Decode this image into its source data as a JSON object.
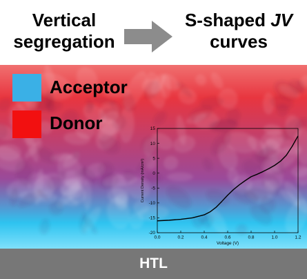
{
  "header": {
    "left": {
      "line1": "Vertical",
      "line2": "segregation"
    },
    "right": {
      "line1_pre": "S-shaped ",
      "line1_em": "JV",
      "line2": "curves"
    }
  },
  "legend": {
    "items": [
      {
        "label": "Acceptor",
        "color": "#3ab0e6"
      },
      {
        "label": "Donor",
        "color": "#f21010"
      }
    ]
  },
  "layer": {
    "label": "HTL",
    "color": "#777777"
  },
  "colors": {
    "donor": "#e8353f",
    "acceptor": "#2ec3f0",
    "blend_mid": "#9a4a9a"
  },
  "chart_data": {
    "type": "line",
    "xlabel": "Voltage (V)",
    "ylabel": "Current Density (mA/cm²)",
    "xlim": [
      0.0,
      1.2
    ],
    "ylim": [
      -20,
      15
    ],
    "xticks": [
      "0.0",
      "0.2",
      "0.4",
      "0.6",
      "0.8",
      "1.0",
      "1.2"
    ],
    "yticks": [
      "-20",
      "-15",
      "-10",
      "-5",
      "0",
      "5",
      "10",
      "15"
    ],
    "series": [
      {
        "color": "#000000",
        "x": [
          0.0,
          0.1,
          0.2,
          0.3,
          0.4,
          0.45,
          0.5,
          0.55,
          0.6,
          0.65,
          0.7,
          0.75,
          0.8,
          0.85,
          0.9,
          0.95,
          1.0,
          1.05,
          1.1,
          1.15,
          1.2
        ],
        "y": [
          -16.0,
          -15.8,
          -15.5,
          -15.0,
          -14.0,
          -13.0,
          -11.5,
          -9.5,
          -7.4,
          -5.5,
          -3.9,
          -2.5,
          -1.2,
          -0.4,
          0.5,
          1.5,
          2.6,
          4.0,
          6.0,
          9.0,
          12.5
        ]
      }
    ]
  }
}
